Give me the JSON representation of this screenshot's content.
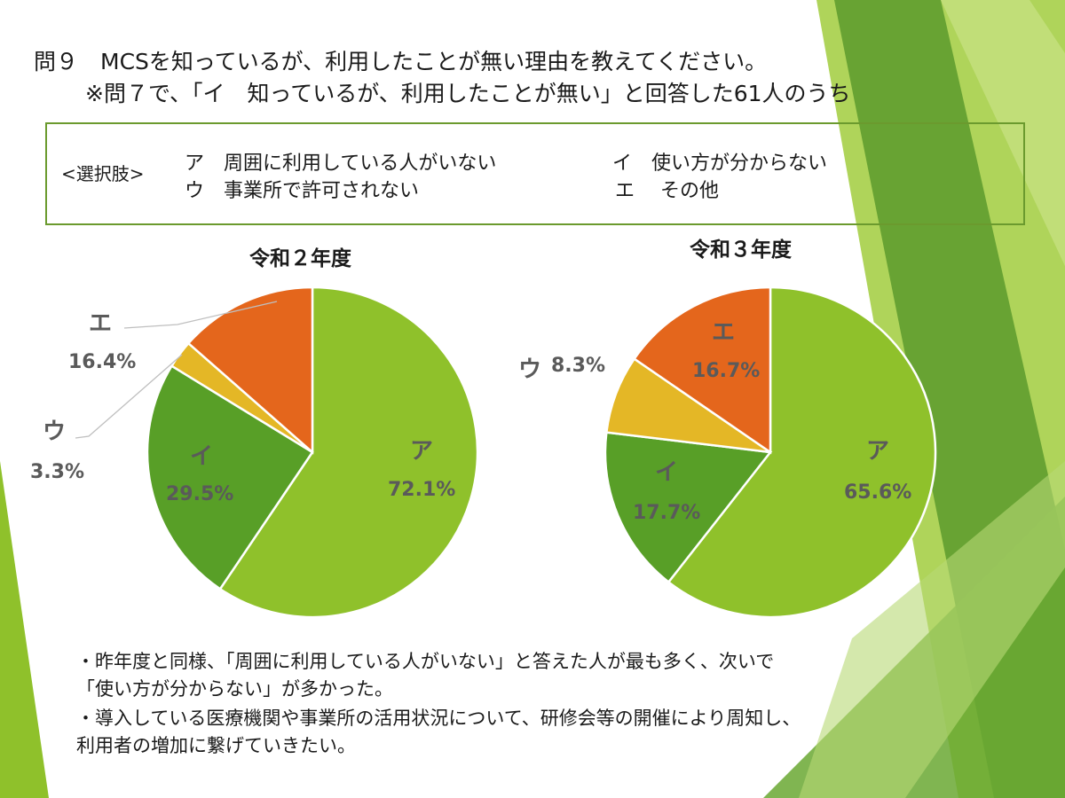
{
  "title": {
    "line1": "問９　MCSを知っているが、利用したことが無い理由を教えてください。",
    "line2": "※問７で、「イ　知っているが、利用したことが無い」と回答した61人のうち"
  },
  "options": {
    "label": "<選択肢>",
    "a": "ア　周囲に利用している人がいない",
    "i": "イ　使い方が分からない",
    "u": "ウ　事業所で許可されない",
    "e": "エ　 その他"
  },
  "colors": {
    "a": "#8fc12b",
    "i": "#589f27",
    "u": "#e4b726",
    "e": "#e4661c",
    "deco_light": "#a6cf48",
    "deco_dark": "#4e8a2a"
  },
  "chart_data": [
    {
      "type": "pie",
      "title": "令和２年度",
      "categories": [
        "ア",
        "イ",
        "ウ",
        "エ"
      ],
      "values": [
        72.1,
        29.5,
        3.3,
        16.4
      ],
      "value_labels": [
        "72.1%",
        "29.5%",
        "3.3%",
        "16.4%"
      ]
    },
    {
      "type": "pie",
      "title": "令和３年度",
      "categories": [
        "ア",
        "イ",
        "ウ",
        "エ"
      ],
      "values": [
        65.6,
        17.7,
        8.3,
        16.7
      ],
      "value_labels": [
        "65.6%",
        "17.7%",
        "8.3%",
        "16.7%"
      ]
    }
  ],
  "notes": {
    "line1": "・昨年度と同様、「周囲に利用している人がいない」と答えた人が最も多く、次いで",
    "line2": "「使い方が分からない」が多かった。",
    "line3": "・導入している医療機関や事業所の活用状況について、研修会等の開催により周知し、",
    "line4": "利用者の増加に繋げていきたい。"
  }
}
